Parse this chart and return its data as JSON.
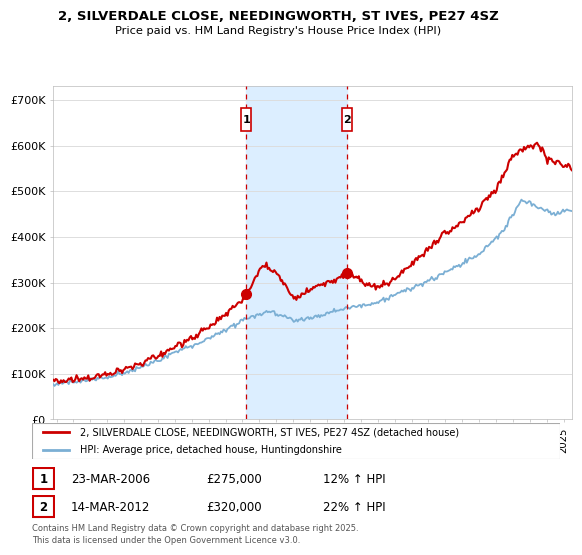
{
  "title": "2, SILVERDALE CLOSE, NEEDINGWORTH, ST IVES, PE27 4SZ",
  "subtitle": "Price paid vs. HM Land Registry's House Price Index (HPI)",
  "ylabel_ticks": [
    "£0",
    "£100K",
    "£200K",
    "£300K",
    "£400K",
    "£500K",
    "£600K",
    "£700K"
  ],
  "ytick_values": [
    0,
    100000,
    200000,
    300000,
    400000,
    500000,
    600000,
    700000
  ],
  "ylim": [
    0,
    730000
  ],
  "xlim_start": 1994.8,
  "xlim_end": 2025.5,
  "sale1_x": 2006.22,
  "sale1_y": 275000,
  "sale1_label": "1",
  "sale2_x": 2012.2,
  "sale2_y": 320000,
  "sale2_label": "2",
  "sale1_date": "23-MAR-2006",
  "sale1_price": "£275,000",
  "sale1_hpi": "12% ↑ HPI",
  "sale2_date": "14-MAR-2012",
  "sale2_price": "£320,000",
  "sale2_hpi": "22% ↑ HPI",
  "legend_line1": "2, SILVERDALE CLOSE, NEEDINGWORTH, ST IVES, PE27 4SZ (detached house)",
  "legend_line2": "HPI: Average price, detached house, Huntingdonshire",
  "footer": "Contains HM Land Registry data © Crown copyright and database right 2025.\nThis data is licensed under the Open Government Licence v3.0.",
  "line_color_red": "#cc0000",
  "line_color_blue": "#7bafd4",
  "background_color": "#ffffff",
  "grid_color": "#dddddd",
  "shading_color": "#dceeff",
  "hpi_keyframes_x": [
    1994.8,
    1996,
    1998,
    2000,
    2002,
    2004,
    2006,
    2007.5,
    2009,
    2010,
    2012,
    2014,
    2016,
    2018,
    2020,
    2021.5,
    2022.5,
    2023.5,
    2024.5,
    2025.5
  ],
  "hpi_keyframes_y": [
    78000,
    82000,
    92000,
    112000,
    145000,
    175000,
    215000,
    235000,
    215000,
    220000,
    240000,
    255000,
    285000,
    320000,
    360000,
    415000,
    480000,
    465000,
    450000,
    460000
  ],
  "prop_keyframes_x": [
    1994.8,
    1996,
    1998,
    2000,
    2002,
    2004,
    2006,
    2006.22,
    2007.2,
    2008,
    2009,
    2009.8,
    2010.5,
    2011.5,
    2012.2,
    2013,
    2014,
    2015,
    2016,
    2017,
    2018,
    2019,
    2020,
    2021,
    2022,
    2022.8,
    2023.5,
    2024,
    2025.5
  ],
  "prop_keyframes_y": [
    83000,
    88000,
    100000,
    122000,
    158000,
    200000,
    260000,
    275000,
    340000,
    320000,
    265000,
    275000,
    290000,
    300000,
    320000,
    300000,
    285000,
    305000,
    335000,
    370000,
    405000,
    430000,
    460000,
    500000,
    570000,
    595000,
    600000,
    570000,
    550000
  ]
}
